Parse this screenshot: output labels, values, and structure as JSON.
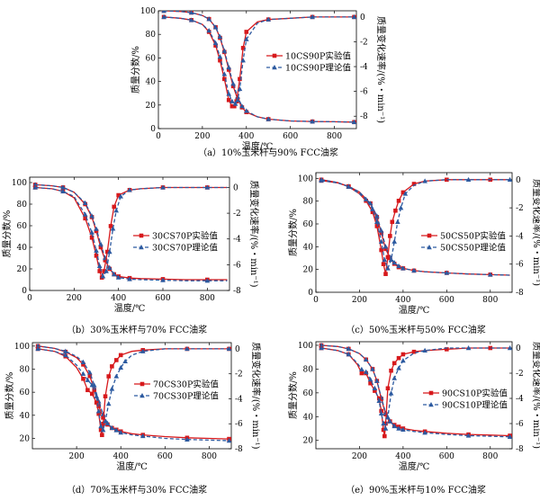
{
  "figure": {
    "xlabel": "温度/℃",
    "ylabel_left": "质量分数/%",
    "ylabel_right": "质量变化速率/(%・min⁻¹)"
  },
  "legend_suffix": {
    "exp": "实验值",
    "theory": "理论值"
  },
  "colors": {
    "exp": "#d7191c",
    "theory": "#2c5aa0"
  },
  "chart_data": [
    {
      "id": "a",
      "type": "line",
      "caption": "（a）10%玉米杆与90% FCC油浆",
      "sample": "10CS90P",
      "xlim": [
        0,
        900
      ],
      "x_ticks": [
        0,
        200,
        400,
        600,
        800
      ],
      "ylim": [
        0,
        100
      ],
      "y_ticks": [
        0,
        20,
        40,
        60,
        80,
        100
      ],
      "y2lim": [
        -9,
        0.5
      ],
      "y2_ticks": [
        0,
        -2,
        -4,
        -6,
        -8
      ],
      "series": [
        {
          "name": "10CS90P实验值",
          "role": "exp",
          "axis": "left",
          "x": [
            25,
            100,
            150,
            200,
            230,
            260,
            280,
            300,
            320,
            340,
            360,
            380,
            400,
            450,
            500,
            600,
            700,
            800,
            890
          ],
          "y": [
            100,
            99.5,
            98.5,
            96,
            93,
            86,
            77,
            65,
            50,
            36,
            25,
            18,
            14,
            10,
            8,
            6.5,
            6,
            5.8,
            5.5
          ]
        },
        {
          "name": "10CS90P理论值",
          "role": "theory",
          "axis": "left",
          "x": [
            25,
            100,
            150,
            200,
            230,
            260,
            280,
            300,
            320,
            340,
            360,
            380,
            400,
            450,
            500,
            600,
            700,
            800,
            890
          ],
          "y": [
            100,
            99.5,
            98.5,
            96,
            93,
            86,
            78,
            66,
            52,
            38,
            27,
            19,
            15,
            10,
            8,
            6.5,
            6,
            5.8,
            5.5
          ]
        },
        {
          "name": "10CS90P实验值",
          "role": "exp",
          "axis": "right",
          "x": [
            25,
            100,
            150,
            200,
            230,
            260,
            280,
            300,
            320,
            335,
            345,
            355,
            370,
            385,
            400,
            450,
            500,
            600,
            700,
            800,
            890
          ],
          "y": [
            0,
            -0.1,
            -0.25,
            -0.6,
            -1.2,
            -2.3,
            -3.5,
            -5.0,
            -6.7,
            -7.2,
            -7.2,
            -6.8,
            -5,
            -2.5,
            -1.2,
            -0.4,
            -0.2,
            -0.1,
            0,
            0,
            0
          ]
        },
        {
          "name": "10CS90P理论值",
          "role": "theory",
          "axis": "right",
          "x": [
            25,
            100,
            150,
            200,
            230,
            260,
            280,
            300,
            320,
            335,
            350,
            360,
            370,
            385,
            400,
            450,
            500,
            600,
            700,
            800,
            890
          ],
          "y": [
            0,
            -0.1,
            -0.25,
            -0.6,
            -1.1,
            -2.1,
            -3.2,
            -4.6,
            -6.2,
            -6.8,
            -7.0,
            -6.7,
            -5.8,
            -3.5,
            -1.8,
            -0.5,
            -0.2,
            -0.1,
            0,
            0,
            0
          ]
        }
      ]
    },
    {
      "id": "b",
      "type": "line",
      "caption": "（b）30%玉米杆与70% FCC油浆",
      "sample": "30CS70P",
      "xlim": [
        0,
        900
      ],
      "x_ticks": [
        0,
        200,
        400,
        600,
        800
      ],
      "ylim": [
        0,
        105
      ],
      "y_ticks": [
        0,
        20,
        40,
        60,
        80,
        100
      ],
      "y2lim": [
        -8,
        0.8
      ],
      "y2_ticks": [
        0,
        -2,
        -4,
        -6,
        -8
      ],
      "series": [
        {
          "name": "30CS70P实验值",
          "role": "exp",
          "axis": "left",
          "x": [
            25,
            100,
            150,
            200,
            250,
            280,
            300,
            320,
            340,
            360,
            380,
            400,
            450,
            500,
            600,
            700,
            800,
            890
          ],
          "y": [
            98,
            97,
            95.5,
            91,
            80,
            68,
            55,
            40,
            28,
            20,
            15,
            13,
            11.5,
            11,
            10.5,
            10,
            10,
            10
          ]
        },
        {
          "name": "30CS70P理论值",
          "role": "theory",
          "axis": "left",
          "x": [
            25,
            100,
            150,
            200,
            250,
            280,
            300,
            320,
            340,
            360,
            380,
            400,
            450,
            500,
            600,
            700,
            800,
            890
          ],
          "y": [
            98,
            97,
            95.5,
            91,
            81,
            69,
            57,
            43,
            30,
            21,
            15,
            12,
            10.5,
            10,
            9.5,
            9,
            9,
            9
          ]
        },
        {
          "name": "30CS70P实验值",
          "role": "exp",
          "axis": "right",
          "x": [
            25,
            100,
            150,
            200,
            250,
            280,
            300,
            315,
            325,
            335,
            350,
            365,
            380,
            400,
            450,
            500,
            600,
            700,
            800,
            890
          ],
          "y": [
            0,
            -0.1,
            -0.3,
            -0.8,
            -2.4,
            -3.9,
            -5.3,
            -6.5,
            -7.0,
            -6.5,
            -5,
            -3,
            -1.5,
            -0.6,
            -0.2,
            -0.1,
            0,
            0,
            0,
            0
          ]
        },
        {
          "name": "30CS70P理论值",
          "role": "theory",
          "axis": "right",
          "x": [
            25,
            100,
            150,
            200,
            250,
            280,
            300,
            315,
            330,
            345,
            360,
            375,
            390,
            410,
            450,
            500,
            600,
            700,
            800,
            890
          ],
          "y": [
            0,
            -0.1,
            -0.3,
            -0.7,
            -2.1,
            -3.5,
            -4.9,
            -6.1,
            -6.9,
            -6.5,
            -5,
            -3.2,
            -1.8,
            -0.7,
            -0.2,
            -0.1,
            0,
            0,
            0,
            0
          ]
        }
      ]
    },
    {
      "id": "c",
      "type": "line",
      "caption": "（c）50%玉米杆与50% FCC油浆",
      "sample": "50CS50P",
      "xlim": [
        0,
        900
      ],
      "x_ticks": [
        0,
        200,
        400,
        600,
        800
      ],
      "ylim": [
        0,
        105
      ],
      "y_ticks": [
        0,
        20,
        40,
        60,
        80,
        100
      ],
      "y2lim": [
        -8,
        0.5
      ],
      "y2_ticks": [
        0,
        -2,
        -4,
        -6,
        -8
      ],
      "series": [
        {
          "name": "50CS50P实验值",
          "role": "exp",
          "axis": "left",
          "x": [
            25,
            100,
            150,
            200,
            250,
            280,
            300,
            320,
            340,
            360,
            380,
            400,
            450,
            500,
            600,
            700,
            800,
            890
          ],
          "y": [
            98,
            96,
            93,
            88,
            78,
            66,
            52,
            38,
            30,
            25,
            22,
            21,
            19,
            18,
            17,
            16,
            15.5,
            15
          ]
        },
        {
          "name": "50CS50P理论值",
          "role": "theory",
          "axis": "left",
          "x": [
            25,
            100,
            150,
            200,
            250,
            280,
            300,
            320,
            340,
            360,
            380,
            400,
            450,
            500,
            600,
            700,
            800,
            890
          ],
          "y": [
            98,
            96,
            93,
            88,
            78,
            67,
            54,
            40,
            31,
            26,
            23,
            21,
            19,
            18,
            17,
            16,
            15.5,
            15
          ]
        },
        {
          "name": "50CS50P实验值",
          "role": "exp",
          "axis": "right",
          "x": [
            25,
            100,
            150,
            200,
            230,
            260,
            280,
            300,
            310,
            320,
            330,
            340,
            350,
            365,
            380,
            400,
            450,
            500,
            600,
            700,
            800,
            890
          ],
          "y": [
            0,
            -0.2,
            -0.5,
            -1.0,
            -1.5,
            -2.3,
            -3.3,
            -5.0,
            -6.0,
            -6.7,
            -5.5,
            -4,
            -3,
            -2.2,
            -1.5,
            -0.9,
            -0.3,
            -0.1,
            0,
            0,
            0,
            0
          ]
        },
        {
          "name": "50CS50P理论值",
          "role": "theory",
          "axis": "right",
          "x": [
            25,
            100,
            150,
            200,
            230,
            260,
            280,
            300,
            315,
            330,
            345,
            360,
            375,
            390,
            410,
            450,
            500,
            600,
            700,
            800,
            890
          ],
          "y": [
            0,
            -0.2,
            -0.5,
            -1.0,
            -1.4,
            -2.1,
            -3.0,
            -4.4,
            -5.7,
            -6.3,
            -5.7,
            -4.4,
            -3.0,
            -2.0,
            -1.0,
            -0.4,
            -0.1,
            0,
            0,
            0,
            0
          ]
        }
      ]
    },
    {
      "id": "d",
      "type": "line",
      "caption": "（d）70%玉米杆与30% FCC油浆",
      "sample": "70CS30P",
      "xlim": [
        0,
        900
      ],
      "x_ticks": [
        200,
        400,
        600,
        800
      ],
      "ylim": [
        11,
        103
      ],
      "y_ticks": [
        20,
        40,
        60,
        80,
        100
      ],
      "y2lim": [
        -8,
        0.5
      ],
      "y2_ticks": [
        0,
        -2,
        -4,
        -6,
        -8
      ],
      "series": [
        {
          "name": "70CS30P实验值",
          "role": "exp",
          "axis": "left",
          "x": [
            25,
            100,
            150,
            200,
            230,
            260,
            280,
            300,
            320,
            340,
            360,
            380,
            400,
            450,
            500,
            600,
            700,
            800,
            890
          ],
          "y": [
            100,
            98,
            95,
            90,
            84,
            74,
            62,
            48,
            38,
            32,
            29,
            27.5,
            26,
            24,
            23,
            21.5,
            20.5,
            20,
            19.5
          ]
        },
        {
          "name": "70CS30P理论值",
          "role": "theory",
          "axis": "left",
          "x": [
            25,
            100,
            150,
            200,
            230,
            260,
            280,
            300,
            320,
            340,
            360,
            380,
            400,
            450,
            500,
            600,
            700,
            800,
            890
          ],
          "y": [
            100,
            98,
            95.5,
            91,
            86,
            77,
            66,
            52,
            41,
            33,
            29,
            27,
            25,
            23,
            22,
            20,
            19,
            18.5,
            18
          ]
        },
        {
          "name": "70CS30P实验值",
          "role": "exp",
          "axis": "right",
          "x": [
            25,
            100,
            150,
            200,
            230,
            250,
            270,
            290,
            300,
            310,
            315,
            320,
            330,
            345,
            360,
            380,
            400,
            450,
            500,
            600,
            700,
            800,
            890
          ],
          "y": [
            0,
            -0.2,
            -0.6,
            -1.5,
            -2.4,
            -3.3,
            -3.6,
            -4.3,
            -5.2,
            -6.5,
            -6.9,
            -6,
            -3.8,
            -2.2,
            -1.4,
            -0.9,
            -0.5,
            -0.2,
            -0.1,
            0,
            0,
            0,
            0
          ]
        },
        {
          "name": "70CS30P理论值",
          "role": "theory",
          "axis": "right",
          "x": [
            25,
            100,
            150,
            200,
            230,
            250,
            270,
            290,
            300,
            310,
            320,
            330,
            345,
            360,
            380,
            400,
            420,
            450,
            500,
            600,
            700,
            800,
            890
          ],
          "y": [
            0,
            -0.2,
            -0.5,
            -1.3,
            -2.0,
            -2.5,
            -2.9,
            -3.8,
            -5.0,
            -6.2,
            -6.5,
            -5.8,
            -4.4,
            -3.2,
            -2.2,
            -1.5,
            -1.0,
            -0.5,
            -0.2,
            0,
            0,
            0,
            0
          ]
        }
      ]
    },
    {
      "id": "e",
      "type": "line",
      "caption": "（e）90%玉米杆与10% FCC油浆",
      "sample": "90CS10P",
      "xlim": [
        0,
        900
      ],
      "x_ticks": [
        200,
        400,
        600,
        800
      ],
      "ylim": [
        13,
        103
      ],
      "y_ticks": [
        20,
        40,
        60,
        80,
        100
      ],
      "y2lim": [
        -8,
        0.5
      ],
      "y2_ticks": [
        0,
        -2,
        -4,
        -6,
        -8
      ],
      "series": [
        {
          "name": "90CS10P实验值",
          "role": "exp",
          "axis": "left",
          "x": [
            25,
            100,
            150,
            200,
            230,
            260,
            280,
            300,
            320,
            340,
            360,
            380,
            400,
            450,
            500,
            600,
            700,
            800,
            890
          ],
          "y": [
            100,
            99,
            97,
            93,
            88,
            80,
            70,
            55,
            42,
            36,
            33,
            31.5,
            30,
            28.5,
            27.5,
            26,
            25,
            24.5,
            24
          ]
        },
        {
          "name": "90CS10P理论值",
          "role": "theory",
          "axis": "left",
          "x": [
            25,
            100,
            150,
            200,
            230,
            260,
            280,
            300,
            320,
            340,
            360,
            380,
            400,
            450,
            500,
            600,
            700,
            800,
            890
          ],
          "y": [
            100,
            99,
            97,
            93,
            88,
            80,
            70,
            56,
            43,
            36,
            32,
            30,
            29,
            27.5,
            26.5,
            25,
            24,
            23.5,
            23
          ]
        },
        {
          "name": "90CS10P实验值",
          "role": "exp",
          "axis": "right",
          "x": [
            25,
            100,
            150,
            190,
            210,
            230,
            250,
            270,
            290,
            300,
            310,
            315,
            320,
            330,
            345,
            360,
            380,
            400,
            450,
            500,
            600,
            700,
            800,
            890
          ],
          "y": [
            0,
            -0.2,
            -0.5,
            -1.3,
            -2.0,
            -2.0,
            -2.8,
            -3.4,
            -4.0,
            -5.0,
            -6.5,
            -7.0,
            -6.0,
            -3.2,
            -1.8,
            -1.2,
            -0.8,
            -0.5,
            -0.3,
            -0.2,
            -0.1,
            0,
            0,
            0
          ]
        },
        {
          "name": "90CS10P理论值",
          "role": "theory",
          "axis": "right",
          "x": [
            25,
            100,
            150,
            190,
            210,
            230,
            250,
            270,
            290,
            300,
            310,
            320,
            330,
            345,
            360,
            380,
            400,
            450,
            500,
            600,
            700,
            800,
            890
          ],
          "y": [
            0,
            -0.2,
            -0.5,
            -1.2,
            -1.7,
            -1.9,
            -2.5,
            -3.2,
            -4.2,
            -5.2,
            -6.0,
            -6.4,
            -5.5,
            -3.6,
            -2.4,
            -1.6,
            -1.0,
            -0.4,
            -0.2,
            0,
            0,
            0,
            0
          ]
        }
      ]
    }
  ]
}
